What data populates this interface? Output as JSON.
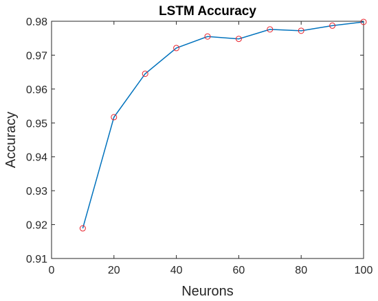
{
  "chart_data": {
    "type": "line",
    "title": "LSTM Accuracy",
    "xlabel": "Neurons",
    "ylabel": "Accuracy",
    "xlim": [
      0,
      100
    ],
    "ylim": [
      0.91,
      0.98
    ],
    "xticks": [
      0,
      20,
      40,
      60,
      80,
      100
    ],
    "yticks": [
      0.91,
      0.92,
      0.93,
      0.94,
      0.95,
      0.96,
      0.97,
      0.98
    ],
    "x_tick_labels": [
      "0",
      "20",
      "40",
      "60",
      "80",
      "100"
    ],
    "y_tick_labels": [
      "0.91",
      "0.92",
      "0.93",
      "0.94",
      "0.95",
      "0.96",
      "0.97",
      "0.98"
    ],
    "grid": false,
    "series": [
      {
        "x": [
          10,
          20,
          30,
          40,
          50,
          60,
          70,
          80,
          90,
          100
        ],
        "y": [
          0.9189,
          0.9517,
          0.9645,
          0.9721,
          0.9755,
          0.9748,
          0.9776,
          0.9772,
          0.9787,
          0.9798
        ],
        "line_color": "#0072BD",
        "marker": "circle",
        "marker_color": "#E8202A"
      }
    ]
  }
}
